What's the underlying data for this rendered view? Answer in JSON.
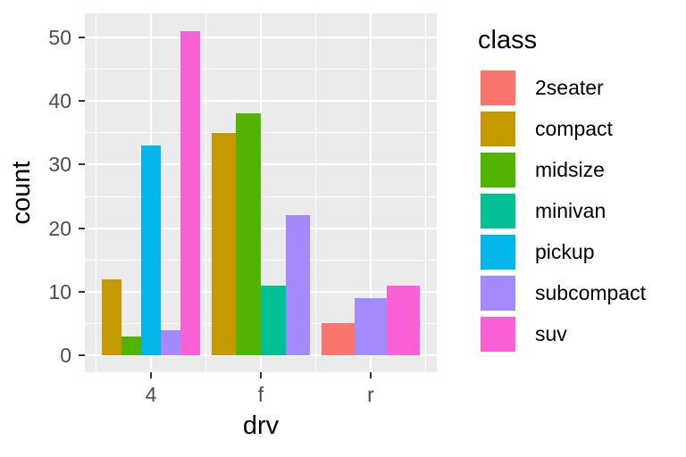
{
  "chart_data": {
    "type": "bar",
    "position": "dodge",
    "xlabel": "drv",
    "ylabel": "count",
    "legend_title": "class",
    "legend_position": "right",
    "categories": [
      "4",
      "f",
      "r"
    ],
    "yticks": [
      0,
      10,
      20,
      30,
      40,
      50
    ],
    "yticks_minor": [
      5,
      15,
      25,
      35,
      45
    ],
    "ylim": [
      0,
      51
    ],
    "grid": "white major and minor gridlines on gray panel",
    "series": [
      {
        "name": "2seater",
        "color": "#F8766D",
        "values": [
          0,
          0,
          5
        ]
      },
      {
        "name": "compact",
        "color": "#C49A00",
        "values": [
          12,
          35,
          0
        ]
      },
      {
        "name": "midsize",
        "color": "#53B400",
        "values": [
          3,
          38,
          0
        ]
      },
      {
        "name": "minivan",
        "color": "#00C094",
        "values": [
          0,
          11,
          0
        ]
      },
      {
        "name": "pickup",
        "color": "#00B6EB",
        "values": [
          33,
          0,
          0
        ]
      },
      {
        "name": "subcompact",
        "color": "#A58AFF",
        "values": [
          4,
          22,
          9
        ]
      },
      {
        "name": "suv",
        "color": "#FB61D7",
        "values": [
          51,
          0,
          11
        ]
      }
    ],
    "theme": {
      "panel_background": "#EBEBEB",
      "grid_color": "#FFFFFF",
      "tick_color": "#333333",
      "tick_label_color": "#4D4D4D",
      "text_color": "#000000"
    }
  }
}
